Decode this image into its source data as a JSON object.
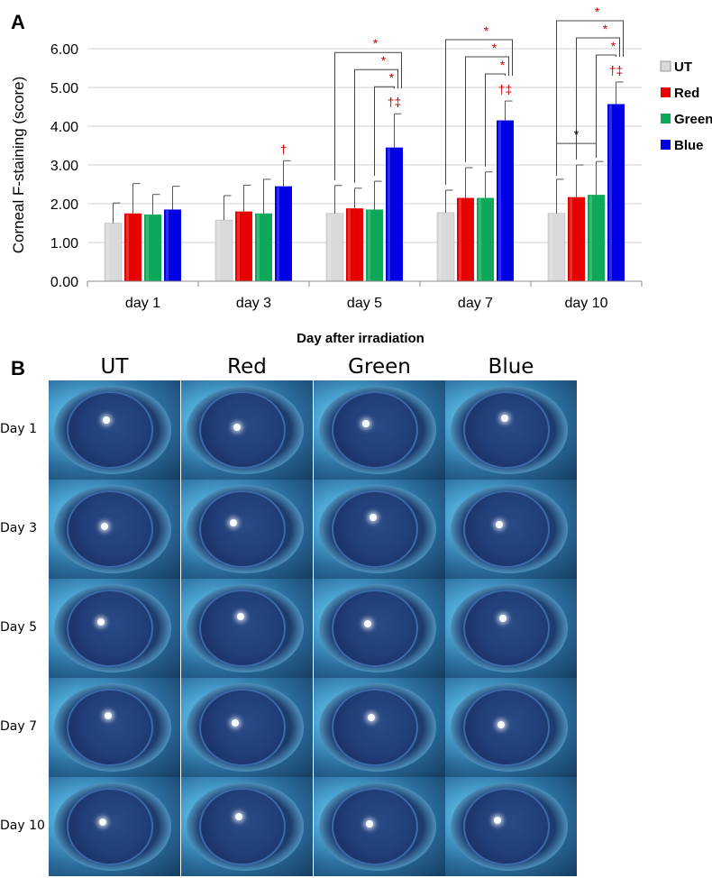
{
  "panel_a_label": "A",
  "panel_b_label": "B",
  "chart_data": {
    "type": "bar",
    "categories": [
      "day 1",
      "day 3",
      "day 5",
      "day 7",
      "day 10"
    ],
    "series": [
      {
        "name": "UT",
        "color": "#d9d9d9",
        "values": [
          1.5,
          1.58,
          1.75,
          1.77,
          1.75
        ],
        "errors": [
          0.52,
          0.63,
          0.72,
          0.58,
          0.88
        ]
      },
      {
        "name": "Red",
        "color": "#e60000",
        "values": [
          1.75,
          1.8,
          1.88,
          2.15,
          2.17
        ],
        "errors": [
          0.77,
          0.68,
          0.52,
          0.78,
          0.83
        ]
      },
      {
        "name": "Green",
        "color": "#0da85a",
        "values": [
          1.72,
          1.75,
          1.85,
          2.15,
          2.23
        ],
        "errors": [
          0.52,
          0.88,
          0.73,
          0.67,
          0.86
        ]
      },
      {
        "name": "Blue",
        "color": "#0000e6",
        "values": [
          1.85,
          2.45,
          3.45,
          4.15,
          4.57
        ],
        "errors": [
          0.6,
          0.66,
          0.87,
          0.5,
          0.57
        ]
      }
    ],
    "ylabel": "Corneal F-staining (score)",
    "xlabel": "Day after irradiation",
    "ylim": [
      0,
      6
    ],
    "yticks": [
      "0.00",
      "1.00",
      "2.00",
      "3.00",
      "4.00",
      "5.00",
      "6.00"
    ],
    "legend_position": "right",
    "blue_markers": [
      "",
      "†",
      "†‡",
      "†‡",
      "†‡"
    ],
    "significance": [
      {
        "category": 2,
        "from_series": 0,
        "to_series": 3,
        "label": "*",
        "color": "#cc0000"
      },
      {
        "category": 2,
        "from_series": 1,
        "to_series": 3,
        "label": "*",
        "color": "#cc0000"
      },
      {
        "category": 2,
        "from_series": 2,
        "to_series": 3,
        "label": "*",
        "color": "#cc0000"
      },
      {
        "category": 3,
        "from_series": 0,
        "to_series": 3,
        "label": "*",
        "color": "#cc0000"
      },
      {
        "category": 3,
        "from_series": 1,
        "to_series": 3,
        "label": "*",
        "color": "#cc0000"
      },
      {
        "category": 3,
        "from_series": 2,
        "to_series": 3,
        "label": "*",
        "color": "#cc0000"
      },
      {
        "category": 4,
        "from_series": 0,
        "to_series": 3,
        "label": "*",
        "color": "#cc0000"
      },
      {
        "category": 4,
        "from_series": 1,
        "to_series": 3,
        "label": "*",
        "color": "#cc0000"
      },
      {
        "category": 4,
        "from_series": 2,
        "to_series": 3,
        "label": "*",
        "color": "#cc0000"
      },
      {
        "category": 4,
        "from_series": 0,
        "to_series": 2,
        "label": "*",
        "color": "#000000"
      }
    ]
  },
  "photo_grid": {
    "columns": [
      "UT",
      "Red",
      "Green",
      "Blue"
    ],
    "rows": [
      "Day 1",
      "Day 3",
      "Day 5",
      "Day 7",
      "Day 10"
    ]
  }
}
